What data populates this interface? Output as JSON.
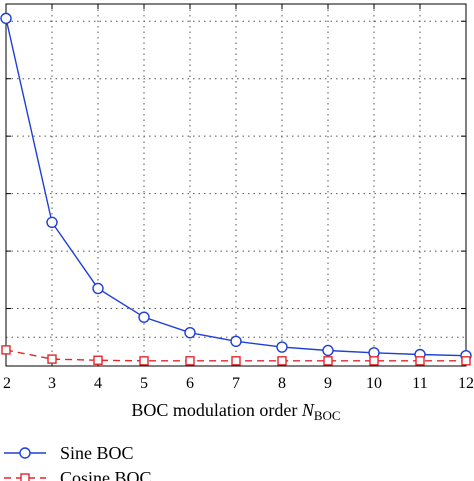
{
  "chart_data": {
    "type": "line",
    "x": [
      2,
      3,
      4,
      5,
      6,
      7,
      8,
      9,
      10,
      11,
      12
    ],
    "xlim": [
      2,
      12
    ],
    "ylim": [
      0,
      6.3
    ],
    "grid": true,
    "xlabel": {
      "main": "BOC modulation order ",
      "var": "N",
      "sub": "BOC"
    },
    "legend_position": "bottom-left",
    "series": [
      {
        "name": "Sine BOC",
        "color": "#1f3fd6",
        "line": "solid",
        "marker": "circle",
        "values": [
          6.05,
          2.5,
          1.35,
          0.85,
          0.58,
          0.43,
          0.33,
          0.27,
          0.23,
          0.2,
          0.18
        ]
      },
      {
        "name": "Cosine BOC",
        "color": "#e0282e",
        "line": "dashed",
        "marker": "square",
        "values": [
          0.28,
          0.12,
          0.1,
          0.09,
          0.09,
          0.09,
          0.09,
          0.09,
          0.09,
          0.09,
          0.09
        ]
      }
    ]
  }
}
